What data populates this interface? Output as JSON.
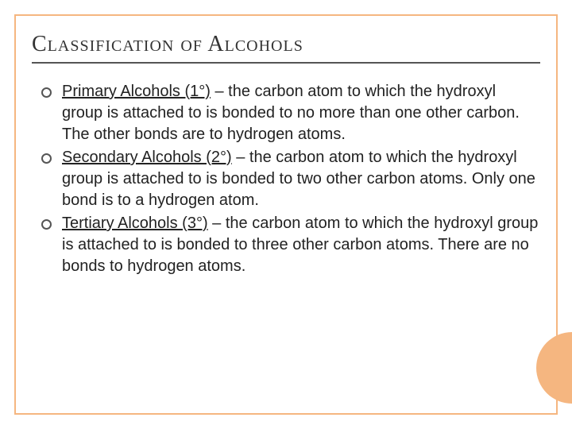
{
  "colors": {
    "accent": "#f5b680",
    "title": "#333333",
    "text": "#222222"
  },
  "title": "Classification of Alcohols",
  "items": [
    {
      "term": "Primary Alcohols (1°)",
      "desc": " – the carbon atom to which the hydroxyl group is attached to is bonded to no more than one other carbon. The other bonds are to hydrogen atoms."
    },
    {
      "term": "Secondary Alcohols (2°)",
      "desc": " – the carbon atom to which the hydroxyl group is attached to is bonded to two other carbon atoms. Only one bond is to a hydrogen atom."
    },
    {
      "term": "Tertiary Alcohols (3°)",
      "desc": " – the carbon atom to which the hydroxyl group is attached to is bonded to three other carbon atoms. There are no bonds to hydrogen atoms."
    }
  ]
}
